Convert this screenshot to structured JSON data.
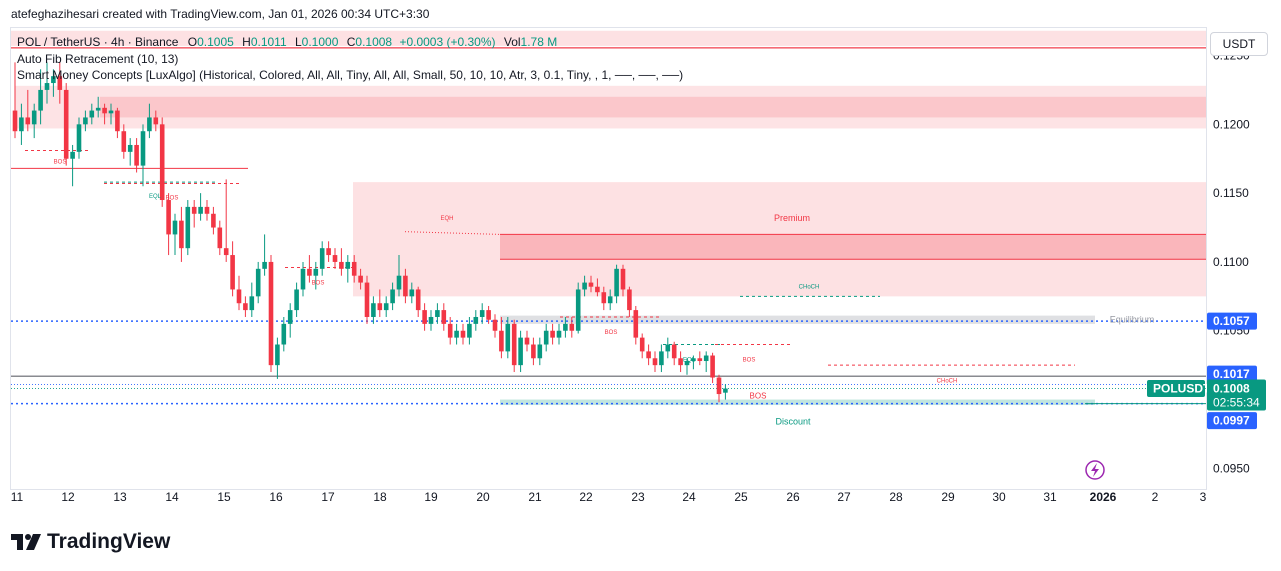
{
  "header": {
    "caption": "atefeghazihesari created with TradingView.com, Jan 01, 2026 00:34 UTC+3:30"
  },
  "legend": {
    "symbol": "POL / TetherUS · 4h · Binance",
    "o_label": "O",
    "o_value": "0.1005",
    "h_label": "H",
    "h_value": "0.1011",
    "l_label": "L",
    "l_value": "0.1000",
    "c_label": "C",
    "c_value": "0.1008",
    "change": "+0.0003 (+0.30%)",
    "vol_label": "Vol",
    "vol_value": "1.78 M",
    "indicator_1": "Auto Fib Retracement (10, 13)",
    "indicator_2": "Smart Money Concepts [LuxAlgo] (Historical, Colored, All, All, Tiny, All, All, Small, 50, 10, 10, Atr, 3, 0.1, Tiny, , 1, ──, ──, ──)"
  },
  "price_axis": {
    "currency_button": "USDT",
    "ticks": [
      "0.1250",
      "0.1200",
      "0.1150",
      "0.1100",
      "0.1050",
      "0.0950"
    ],
    "badges": {
      "fib_high": "0.1057",
      "fib_mid": "0.1017",
      "symbol": "POLUSDT",
      "last_price": "0.1008",
      "countdown": "02:55:34",
      "fib_low": "0.0997"
    }
  },
  "time_axis": {
    "ticks": [
      "11",
      "12",
      "13",
      "14",
      "15",
      "16",
      "17",
      "18",
      "19",
      "20",
      "21",
      "22",
      "23",
      "24",
      "25",
      "26",
      "27",
      "28",
      "29",
      "30",
      "31",
      "2026",
      "2",
      "3"
    ]
  },
  "annotations": {
    "premium": "Premium",
    "equilibrium": "Equilibrium",
    "discount": "Discount",
    "bos": "BOS",
    "eql": "EQL",
    "eqh": "EQH",
    "choch": "CHoCH"
  },
  "colors": {
    "up": "#089981",
    "down": "#f23645",
    "fib_line": "#2962ff",
    "premium_zone": "#f23645",
    "discount_zone": "#089981"
  },
  "brand": {
    "name": "TradingView"
  },
  "chart_data": {
    "type": "candlestick",
    "title": "POL / TetherUS · 4h · Binance",
    "x_axis": "Dec 11 2025 – Jan 3 2026",
    "y_axis": "USDT",
    "ylim": [
      0.0935,
      0.127
    ],
    "ohlc": [
      [
        0.121,
        0.1245,
        0.119,
        0.1195
      ],
      [
        0.1195,
        0.1215,
        0.1185,
        0.1205
      ],
      [
        0.1205,
        0.1225,
        0.1195,
        0.12
      ],
      [
        0.12,
        0.1215,
        0.119,
        0.121
      ],
      [
        0.121,
        0.124,
        0.12,
        0.1225
      ],
      [
        0.1225,
        0.1245,
        0.1215,
        0.123
      ],
      [
        0.123,
        0.124,
        0.122,
        0.1235
      ],
      [
        0.1235,
        0.1245,
        0.1215,
        0.1225
      ],
      [
        0.1225,
        0.123,
        0.117,
        0.1175
      ],
      [
        0.1175,
        0.1185,
        0.1155,
        0.118
      ],
      [
        0.118,
        0.1205,
        0.1175,
        0.12
      ],
      [
        0.12,
        0.121,
        0.1195,
        0.1205
      ],
      [
        0.1205,
        0.1215,
        0.12,
        0.121
      ],
      [
        0.121,
        0.122,
        0.1205,
        0.1212
      ],
      [
        0.1212,
        0.1215,
        0.12,
        0.1208
      ],
      [
        0.1208,
        0.1215,
        0.12,
        0.121
      ],
      [
        0.121,
        0.1212,
        0.119,
        0.1195
      ],
      [
        0.1195,
        0.12,
        0.1175,
        0.118
      ],
      [
        0.118,
        0.119,
        0.117,
        0.1185
      ],
      [
        0.1185,
        0.119,
        0.1165,
        0.117
      ],
      [
        0.117,
        0.12,
        0.1155,
        0.1195
      ],
      [
        0.1195,
        0.1215,
        0.119,
        0.1205
      ],
      [
        0.1205,
        0.121,
        0.1195,
        0.12
      ],
      [
        0.12,
        0.1205,
        0.114,
        0.1145
      ],
      [
        0.1145,
        0.115,
        0.1105,
        0.112
      ],
      [
        0.112,
        0.1135,
        0.1105,
        0.113
      ],
      [
        0.113,
        0.114,
        0.11,
        0.111
      ],
      [
        0.111,
        0.1145,
        0.1105,
        0.114
      ],
      [
        0.114,
        0.1145,
        0.1125,
        0.1135
      ],
      [
        0.1135,
        0.115,
        0.113,
        0.114
      ],
      [
        0.114,
        0.1145,
        0.113,
        0.1135
      ],
      [
        0.1135,
        0.114,
        0.112,
        0.1125
      ],
      [
        0.1125,
        0.113,
        0.1105,
        0.111
      ],
      [
        0.111,
        0.116,
        0.11,
        0.1105
      ],
      [
        0.1105,
        0.1115,
        0.1075,
        0.108
      ],
      [
        0.108,
        0.109,
        0.1065,
        0.107
      ],
      [
        0.107,
        0.1075,
        0.106,
        0.1065
      ],
      [
        0.1065,
        0.1085,
        0.106,
        0.1075
      ],
      [
        0.1075,
        0.11,
        0.107,
        0.1095
      ],
      [
        0.1095,
        0.112,
        0.109,
        0.11
      ],
      [
        0.11,
        0.1105,
        0.102,
        0.1025
      ],
      [
        0.1025,
        0.1045,
        0.1015,
        0.104
      ],
      [
        0.104,
        0.106,
        0.1035,
        0.1055
      ],
      [
        0.1055,
        0.107,
        0.1045,
        0.1065
      ],
      [
        0.1065,
        0.1085,
        0.106,
        0.108
      ],
      [
        0.108,
        0.11,
        0.1075,
        0.1095
      ],
      [
        0.1095,
        0.1105,
        0.1085,
        0.109
      ],
      [
        0.109,
        0.11,
        0.108,
        0.1095
      ],
      [
        0.1095,
        0.1115,
        0.109,
        0.111
      ],
      [
        0.111,
        0.1115,
        0.11,
        0.1105
      ],
      [
        0.1105,
        0.111,
        0.1095,
        0.11
      ],
      [
        0.11,
        0.111,
        0.109,
        0.1095
      ],
      [
        0.1095,
        0.1105,
        0.1085,
        0.11
      ],
      [
        0.11,
        0.1105,
        0.1085,
        0.109
      ],
      [
        0.109,
        0.1095,
        0.108,
        0.1085
      ],
      [
        0.1085,
        0.109,
        0.1055,
        0.106
      ],
      [
        0.106,
        0.1075,
        0.1055,
        0.107
      ],
      [
        0.107,
        0.108,
        0.106,
        0.1065
      ],
      [
        0.1065,
        0.1075,
        0.106,
        0.107
      ],
      [
        0.107,
        0.1085,
        0.1065,
        0.108
      ],
      [
        0.108,
        0.1105,
        0.1075,
        0.109
      ],
      [
        0.109,
        0.1095,
        0.107,
        0.1075
      ],
      [
        0.1075,
        0.1085,
        0.107,
        0.108
      ],
      [
        0.108,
        0.1082,
        0.106,
        0.1065
      ],
      [
        0.1065,
        0.107,
        0.105,
        0.1055
      ],
      [
        0.1055,
        0.1065,
        0.105,
        0.106
      ],
      [
        0.106,
        0.107,
        0.1055,
        0.1065
      ],
      [
        0.1065,
        0.107,
        0.105,
        0.1055
      ],
      [
        0.1055,
        0.106,
        0.104,
        0.1045
      ],
      [
        0.1045,
        0.1055,
        0.104,
        0.105
      ],
      [
        0.105,
        0.1055,
        0.104,
        0.1045
      ],
      [
        0.1045,
        0.106,
        0.104,
        0.1055
      ],
      [
        0.1055,
        0.1065,
        0.105,
        0.106
      ],
      [
        0.106,
        0.107,
        0.1055,
        0.1065
      ],
      [
        0.1065,
        0.1068,
        0.1055,
        0.1058
      ],
      [
        0.1058,
        0.1062,
        0.1045,
        0.105
      ],
      [
        0.105,
        0.106,
        0.103,
        0.1035
      ],
      [
        0.1035,
        0.106,
        0.103,
        0.1055
      ],
      [
        0.1055,
        0.1058,
        0.102,
        0.1025
      ],
      [
        0.1025,
        0.105,
        0.102,
        0.1045
      ],
      [
        0.1045,
        0.105,
        0.1035,
        0.104
      ],
      [
        0.104,
        0.1045,
        0.1025,
        0.103
      ],
      [
        0.103,
        0.1045,
        0.1025,
        0.104
      ],
      [
        0.104,
        0.1055,
        0.1035,
        0.105
      ],
      [
        0.105,
        0.1055,
        0.104,
        0.1045
      ],
      [
        0.1045,
        0.1055,
        0.104,
        0.105
      ],
      [
        0.105,
        0.106,
        0.1045,
        0.1055
      ],
      [
        0.1055,
        0.106,
        0.1045,
        0.105
      ],
      [
        0.105,
        0.1085,
        0.1048,
        0.108
      ],
      [
        0.108,
        0.109,
        0.1075,
        0.1085
      ],
      [
        0.1085,
        0.109,
        0.1078,
        0.1082
      ],
      [
        0.1082,
        0.1088,
        0.1075,
        0.1078
      ],
      [
        0.1078,
        0.1082,
        0.1065,
        0.107
      ],
      [
        0.107,
        0.108,
        0.1065,
        0.1075
      ],
      [
        0.1075,
        0.1098,
        0.107,
        0.1095
      ],
      [
        0.1095,
        0.1098,
        0.1075,
        0.108
      ],
      [
        0.108,
        0.1082,
        0.106,
        0.1065
      ],
      [
        0.1065,
        0.1068,
        0.104,
        0.1045
      ],
      [
        0.1045,
        0.1048,
        0.103,
        0.1035
      ],
      [
        0.1035,
        0.104,
        0.1025,
        0.103
      ],
      [
        0.103,
        0.1035,
        0.102,
        0.1025
      ],
      [
        0.1025,
        0.104,
        0.102,
        0.1035
      ],
      [
        0.1035,
        0.1045,
        0.103,
        0.104
      ],
      [
        0.104,
        0.1042,
        0.1025,
        0.103
      ],
      [
        0.103,
        0.1035,
        0.102,
        0.1025
      ],
      [
        0.1025,
        0.103,
        0.1018,
        0.1028
      ],
      [
        0.1028,
        0.1032,
        0.1022,
        0.103
      ],
      [
        0.103,
        0.1035,
        0.1025,
        0.1028
      ],
      [
        0.1028,
        0.1035,
        0.102,
        0.1032
      ],
      [
        0.1032,
        0.1034,
        0.1012,
        0.1016
      ],
      [
        0.1016,
        0.1018,
        0.0998,
        0.1004
      ],
      [
        0.1005,
        0.1011,
        0.1,
        0.1008
      ]
    ]
  }
}
